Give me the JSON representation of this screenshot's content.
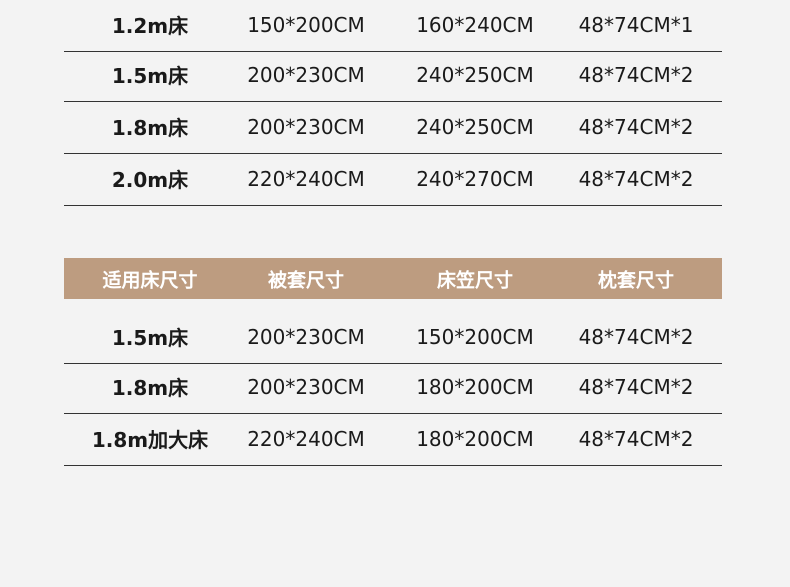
{
  "table1": {
    "rows": [
      [
        "1.2m床",
        "150*200CM",
        "160*240CM",
        "48*74CM*1"
      ],
      [
        "1.5m床",
        "200*230CM",
        "240*250CM",
        "48*74CM*2"
      ],
      [
        "1.8m床",
        "200*230CM",
        "240*250CM",
        "48*74CM*2"
      ],
      [
        "2.0m床",
        "220*240CM",
        "240*270CM",
        "48*74CM*2"
      ]
    ]
  },
  "table2": {
    "header": [
      "适用床尺寸",
      "被套尺寸",
      "床笠尺寸",
      "枕套尺寸"
    ],
    "header_color": "#bd9c80",
    "rows": [
      [
        "1.5m床",
        "200*230CM",
        "150*200CM",
        "48*74CM*2"
      ],
      [
        "1.8m床",
        "200*230CM",
        "180*200CM",
        "48*74CM*2"
      ],
      [
        "1.8m加大床",
        "220*240CM",
        "180*200CM",
        "48*74CM*2"
      ]
    ]
  }
}
